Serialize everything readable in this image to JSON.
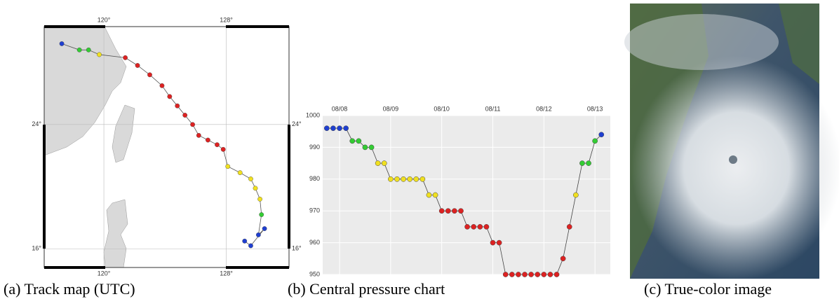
{
  "chart_data": [
    {
      "type": "track",
      "caption": "(a) Track map (UTC)",
      "xlim": [
        116.1,
        132.1
      ],
      "ylim": [
        14.8,
        30.3
      ],
      "xticks": [
        {
          "value": 120,
          "label": "120°"
        },
        {
          "value": 128,
          "label": "128°"
        }
      ],
      "yticks": [
        {
          "value": 16,
          "label": "16°"
        },
        {
          "value": 24,
          "label": "24°"
        }
      ],
      "grid": true,
      "series": [
        {
          "x": [
            117.25,
            118.4,
            119.0,
            119.7,
            121.4,
            122.2,
            123.0,
            123.8,
            124.3,
            124.8,
            125.3,
            125.8,
            126.2,
            126.8,
            127.4,
            127.8,
            128.1,
            128.9,
            129.6,
            129.9,
            130.2,
            130.3,
            130.1,
            130.5,
            129.6,
            129.2
          ],
          "y": [
            29.2,
            28.8,
            28.8,
            28.5,
            28.3,
            27.8,
            27.2,
            26.5,
            25.8,
            25.2,
            24.6,
            24.0,
            23.3,
            23.0,
            22.7,
            22.4,
            21.3,
            20.9,
            20.5,
            19.9,
            19.2,
            18.2,
            16.9,
            17.3,
            16.2,
            16.5
          ],
          "colors": [
            "#1f3fd0",
            "#33cc33",
            "#33cc33",
            "#f0e020",
            "#dd2222",
            "#dd2222",
            "#dd2222",
            "#dd2222",
            "#dd2222",
            "#dd2222",
            "#dd2222",
            "#dd2222",
            "#dd2222",
            "#dd2222",
            "#dd2222",
            "#dd2222",
            "#f0e020",
            "#f0e020",
            "#f0e020",
            "#f0e020",
            "#f0e020",
            "#33cc33",
            "#1f3fd0",
            "#1f3fd0",
            "#1f3fd0",
            "#1f3fd0"
          ]
        }
      ]
    },
    {
      "type": "line",
      "caption": "(b) Central pressure chart",
      "xlim": [
        7.67,
        13.3
      ],
      "ylim": [
        950,
        1000
      ],
      "xticks": [
        {
          "value": 8,
          "label": "08/08"
        },
        {
          "value": 9,
          "label": "08/09"
        },
        {
          "value": 10,
          "label": "08/10"
        },
        {
          "value": 11,
          "label": "08/11"
        },
        {
          "value": 12,
          "label": "08/12"
        },
        {
          "value": 13,
          "label": "08/13"
        }
      ],
      "yticks": [
        950,
        960,
        970,
        980,
        990,
        1000
      ],
      "grid": true,
      "series": [
        {
          "x": [
            7.75,
            7.875,
            8,
            8.125,
            8.25,
            8.375,
            8.5,
            8.625,
            8.75,
            8.875,
            9,
            9.125,
            9.25,
            9.375,
            9.5,
            9.625,
            9.75,
            9.875,
            10,
            10.125,
            10.25,
            10.375,
            10.5,
            10.625,
            10.75,
            10.875,
            11,
            11.125,
            11.25,
            11.375,
            11.5,
            11.625,
            11.75,
            11.875,
            12,
            12.125,
            12.25,
            12.375,
            12.5,
            12.625,
            12.75,
            12.875,
            13,
            13.125
          ],
          "values": [
            996,
            996,
            996,
            996,
            992,
            992,
            990,
            990,
            985,
            985,
            980,
            980,
            980,
            980,
            980,
            980,
            975,
            975,
            970,
            970,
            970,
            970,
            965,
            965,
            965,
            965,
            960,
            960,
            950,
            950,
            950,
            950,
            950,
            950,
            950,
            950,
            950,
            955,
            965,
            975,
            985,
            985,
            992,
            994
          ],
          "colors": [
            "#1f3fd0",
            "#1f3fd0",
            "#1f3fd0",
            "#1f3fd0",
            "#33cc33",
            "#33cc33",
            "#33cc33",
            "#33cc33",
            "#f0e020",
            "#f0e020",
            "#f0e020",
            "#f0e020",
            "#f0e020",
            "#f0e020",
            "#f0e020",
            "#f0e020",
            "#f0e020",
            "#f0e020",
            "#dd2222",
            "#dd2222",
            "#dd2222",
            "#dd2222",
            "#dd2222",
            "#dd2222",
            "#dd2222",
            "#dd2222",
            "#dd2222",
            "#dd2222",
            "#dd2222",
            "#dd2222",
            "#dd2222",
            "#dd2222",
            "#dd2222",
            "#dd2222",
            "#dd2222",
            "#dd2222",
            "#dd2222",
            "#dd2222",
            "#dd2222",
            "#f0e020",
            "#33cc33",
            "#33cc33",
            "#33cc33",
            "#1f3fd0"
          ]
        }
      ]
    }
  ],
  "image": {
    "caption": "(c) True-color image"
  }
}
